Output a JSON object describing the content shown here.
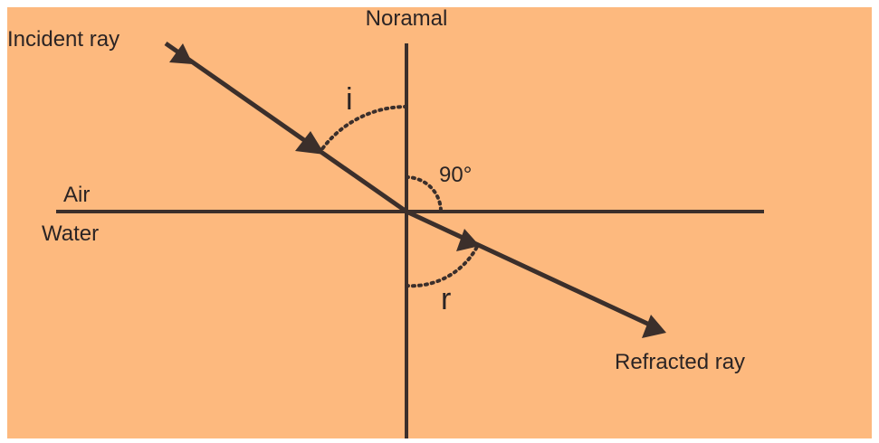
{
  "diagram": {
    "labels": {
      "normal": "Noramal",
      "incident": "Incident ray",
      "air": "Air",
      "water": "Water",
      "angle_i": "i",
      "angle_90": "90°",
      "angle_r": "r",
      "refracted": "Refracted ray"
    },
    "colors": {
      "background": "#fdb97e",
      "ink": "#3b2f2b"
    }
  }
}
